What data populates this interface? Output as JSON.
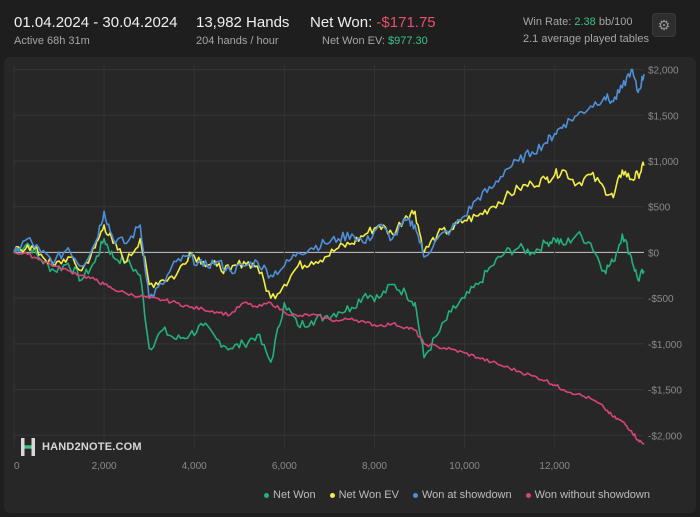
{
  "header": {
    "date_range": "01.04.2024 - 30.04.2024",
    "active": "Active 68h 31m",
    "hands": "13,982 Hands",
    "hands_rate": "204 hands / hour",
    "net_won_label": "Net Won: ",
    "net_won_value": "-$171.75",
    "net_won_ev_label": "Net Won  EV: ",
    "net_won_ev_value": "$977.30",
    "win_rate_label": "Win Rate: ",
    "win_rate_value": "2.38",
    "win_rate_unit": " bb/100",
    "avg_tables": "2.1 average played tables",
    "settings_icon": "gear-icon"
  },
  "logo": {
    "text": "HAND2NOTE.COM"
  },
  "colors": {
    "net_won": "#23b07d",
    "net_won_ev": "#f2ee45",
    "won_showdown": "#4d8fd9",
    "won_without_showdown": "#d6447a"
  },
  "chart_data": {
    "type": "line",
    "x_ticks": [
      {
        "value": 0,
        "label": "0"
      },
      {
        "value": 2000,
        "label": "2,000"
      },
      {
        "value": 4000,
        "label": "4,000"
      },
      {
        "value": 6000,
        "label": "6,000"
      },
      {
        "value": 8000,
        "label": "8,000"
      },
      {
        "value": 10000,
        "label": "10,000"
      },
      {
        "value": 12000,
        "label": "12,000"
      }
    ],
    "y_ticks": [
      {
        "value": 2000,
        "label": "$2,000"
      },
      {
        "value": 1500,
        "label": "$1,500"
      },
      {
        "value": 1000,
        "label": "$1,000"
      },
      {
        "value": 500,
        "label": "$500"
      },
      {
        "value": 0,
        "label": "$0"
      },
      {
        "value": -500,
        "label": "-$500"
      },
      {
        "value": -1000,
        "label": "-$1,000"
      },
      {
        "value": -1500,
        "label": "-$1,500"
      },
      {
        "value": -2000,
        "label": "-$2,000"
      }
    ],
    "xlim": [
      0,
      13982
    ],
    "ylim": [
      -2150,
      2050
    ],
    "grid": true,
    "legend_position": "bottom-right",
    "series": [
      {
        "name": "Net Won",
        "color": "#23b07d",
        "x": [
          0,
          300,
          600,
          900,
          1200,
          1500,
          1800,
          2000,
          2200,
          2500,
          2800,
          3000,
          3300,
          3600,
          3900,
          4200,
          4500,
          4800,
          5100,
          5400,
          5700,
          6000,
          6300,
          6600,
          6900,
          7200,
          7500,
          7800,
          8100,
          8400,
          8700,
          8900,
          9100,
          9400,
          9700,
          10000,
          10300,
          10600,
          10900,
          11200,
          11500,
          11800,
          12000,
          12200,
          12500,
          12800,
          13100,
          13300,
          13500,
          13700,
          13850,
          13982
        ],
        "y": [
          0,
          100,
          -80,
          -200,
          -120,
          -300,
          -100,
          150,
          -50,
          -100,
          -250,
          -1050,
          -850,
          -950,
          -900,
          -800,
          -950,
          -1050,
          -1000,
          -900,
          -1200,
          -550,
          -800,
          -750,
          -700,
          -650,
          -600,
          -450,
          -500,
          -350,
          -450,
          -550,
          -1150,
          -900,
          -650,
          -500,
          -350,
          -150,
          0,
          50,
          0,
          100,
          150,
          80,
          200,
          100,
          -200,
          -100,
          200,
          -50,
          -300,
          -200
        ]
      },
      {
        "name": "Net Won  EV",
        "color": "#f2ee45",
        "x": [
          0,
          300,
          600,
          900,
          1200,
          1500,
          1800,
          2000,
          2200,
          2500,
          2800,
          3000,
          3300,
          3600,
          3900,
          4200,
          4500,
          4800,
          5100,
          5400,
          5700,
          6000,
          6300,
          6600,
          6900,
          7200,
          7500,
          7800,
          8100,
          8400,
          8700,
          8900,
          9100,
          9400,
          9700,
          10000,
          10300,
          10600,
          10900,
          11200,
          11500,
          11800,
          12000,
          12200,
          12500,
          12800,
          13100,
          13300,
          13500,
          13700,
          13850,
          13982
        ],
        "y": [
          0,
          80,
          -20,
          -150,
          -50,
          -200,
          50,
          300,
          100,
          -100,
          150,
          -350,
          -300,
          -250,
          0,
          -100,
          -150,
          -200,
          -100,
          -150,
          -500,
          -350,
          -150,
          -100,
          -50,
          50,
          100,
          200,
          300,
          200,
          400,
          450,
          0,
          200,
          250,
          350,
          400,
          500,
          600,
          700,
          750,
          800,
          850,
          900,
          750,
          850,
          700,
          600,
          900,
          800,
          850,
          950
        ]
      },
      {
        "name": "Won at showdown",
        "color": "#4d8fd9",
        "x": [
          0,
          300,
          600,
          900,
          1200,
          1500,
          1800,
          2000,
          2200,
          2500,
          2800,
          3000,
          3300,
          3600,
          3900,
          4200,
          4500,
          4800,
          5100,
          5400,
          5700,
          6000,
          6300,
          6600,
          6900,
          7200,
          7500,
          7800,
          8100,
          8400,
          8700,
          8900,
          9100,
          9400,
          9700,
          10000,
          10300,
          10600,
          10900,
          11200,
          11500,
          11800,
          12000,
          12200,
          12500,
          12800,
          13100,
          13300,
          13500,
          13700,
          13850,
          13982
        ],
        "y": [
          0,
          150,
          0,
          -100,
          50,
          -150,
          100,
          450,
          150,
          100,
          300,
          -500,
          -350,
          -100,
          -50,
          -150,
          -100,
          -200,
          -150,
          -100,
          -250,
          -150,
          0,
          50,
          100,
          150,
          200,
          100,
          300,
          150,
          350,
          300,
          -50,
          150,
          250,
          400,
          600,
          700,
          900,
          1000,
          1100,
          1200,
          1300,
          1400,
          1500,
          1600,
          1700,
          1650,
          1800,
          2000,
          1750,
          1950
        ]
      },
      {
        "name": "Won without showdown",
        "color": "#d6447a",
        "x": [
          0,
          300,
          600,
          900,
          1200,
          1500,
          1800,
          2000,
          2200,
          2500,
          2800,
          3000,
          3300,
          3600,
          3900,
          4200,
          4500,
          4800,
          5100,
          5400,
          5700,
          6000,
          6300,
          6600,
          6900,
          7200,
          7500,
          7800,
          8100,
          8400,
          8700,
          8900,
          9100,
          9400,
          9700,
          10000,
          10300,
          10600,
          10900,
          11200,
          11500,
          11800,
          12000,
          12200,
          12500,
          12800,
          13100,
          13300,
          13500,
          13700,
          13850,
          13982
        ],
        "y": [
          0,
          -20,
          -80,
          -150,
          -200,
          -250,
          -300,
          -350,
          -400,
          -450,
          -480,
          -500,
          -520,
          -550,
          -600,
          -620,
          -650,
          -680,
          -550,
          -600,
          -550,
          -650,
          -700,
          -680,
          -720,
          -750,
          -720,
          -770,
          -800,
          -780,
          -820,
          -850,
          -1000,
          -1030,
          -1060,
          -1100,
          -1150,
          -1200,
          -1250,
          -1300,
          -1350,
          -1400,
          -1450,
          -1500,
          -1550,
          -1600,
          -1700,
          -1800,
          -1850,
          -1950,
          -2050,
          -2100
        ]
      }
    ]
  },
  "legend": [
    {
      "label": "Net Won",
      "color": "#23b07d"
    },
    {
      "label": "Net Won  EV",
      "color": "#f2ee45"
    },
    {
      "label": "Won at showdown",
      "color": "#4d8fd9"
    },
    {
      "label": "Won without showdown",
      "color": "#d6447a"
    }
  ]
}
